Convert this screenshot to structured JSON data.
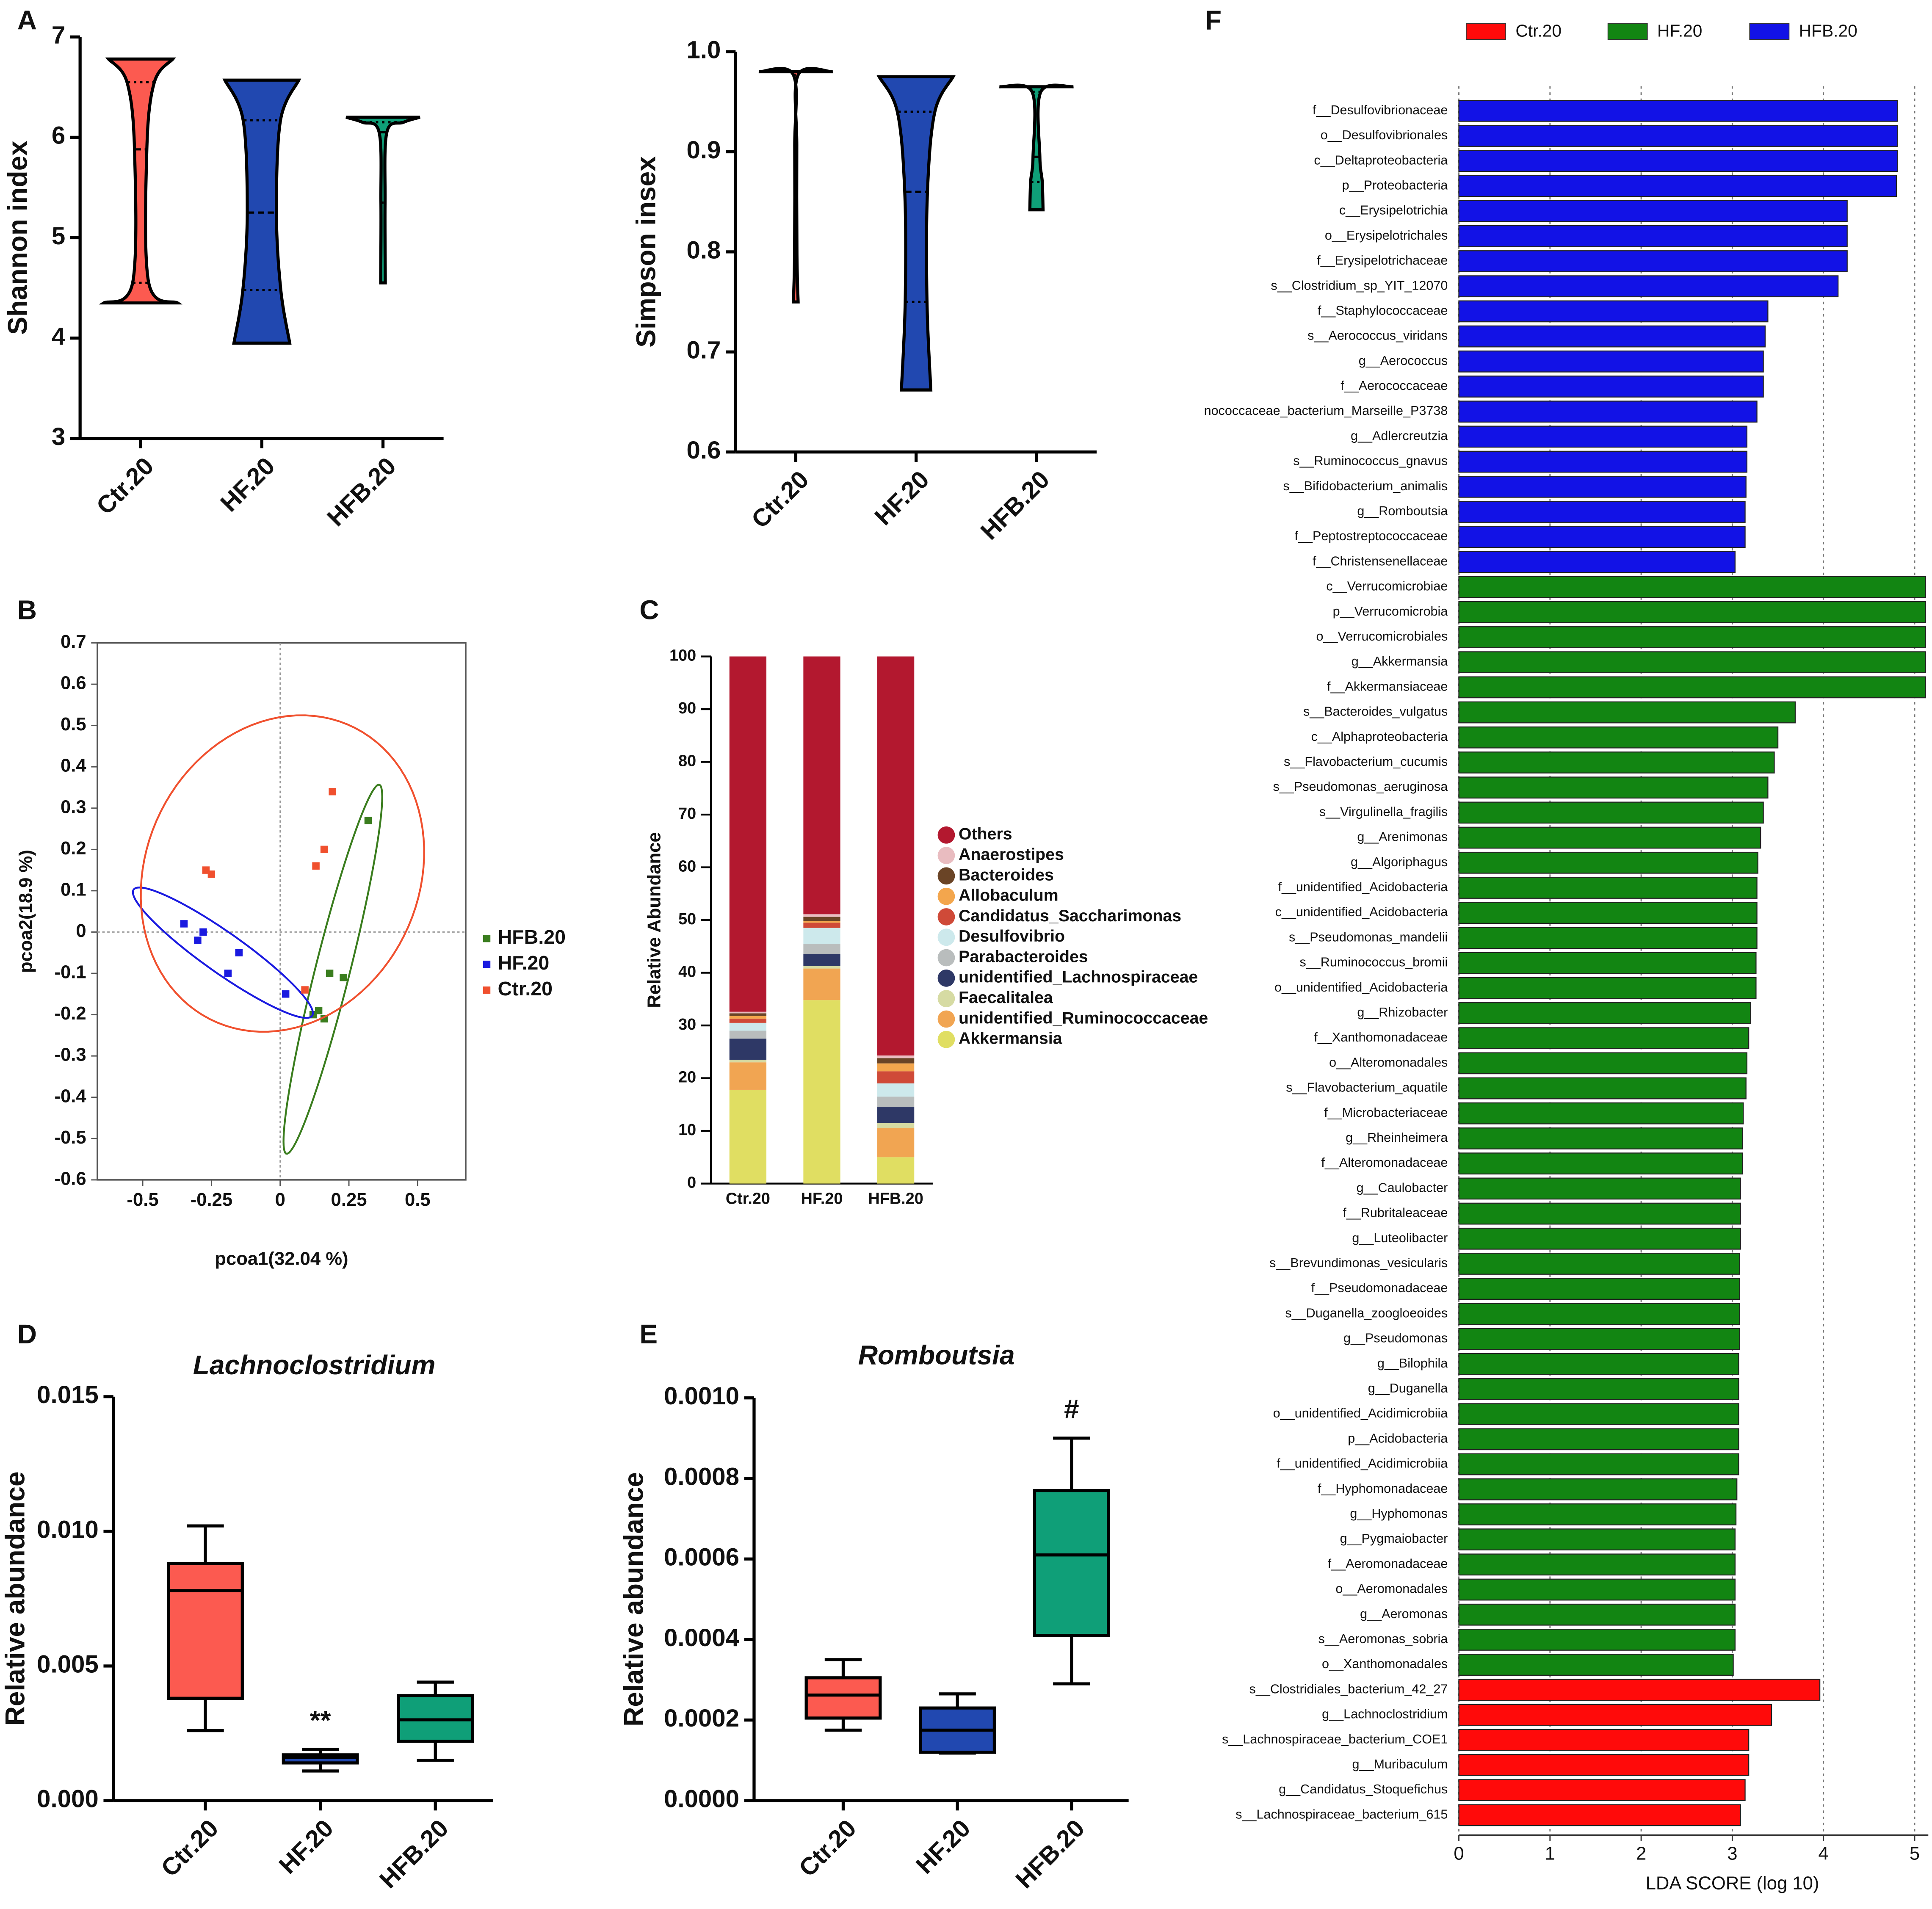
{
  "chart_data": [
    {
      "type": "violin",
      "panel": "A",
      "ylabel": "Shannon index",
      "categories": [
        "Ctr.20",
        "HF.20",
        "HFB.20"
      ],
      "colors": [
        "#fc5a50",
        "#2148b0",
        "#0f9f78"
      ],
      "stats": [
        {
          "min": 4.35,
          "q1": 4.55,
          "median": 5.88,
          "q3": 6.55,
          "max": 6.78
        },
        {
          "min": 3.95,
          "q1": 4.48,
          "median": 5.25,
          "q3": 6.17,
          "max": 6.57
        },
        {
          "min": 4.55,
          "q1": 5.35,
          "median": 6.05,
          "q3": 6.15,
          "max": 6.2
        }
      ],
      "ylim": [
        3,
        7
      ],
      "yticks": [
        3,
        4,
        5,
        6,
        7
      ]
    },
    {
      "type": "violin",
      "ylabel": "Simpson insex",
      "categories": [
        "Ctr.20",
        "HF.20",
        "HFB.20"
      ],
      "colors": [
        "#fc5a50",
        "#2148b0",
        "#0f9f78"
      ],
      "stats": [
        {
          "min": 0.75,
          "q1": 0.797,
          "median": 0.905,
          "q3": 0.977,
          "max": 0.98
        },
        {
          "min": 0.662,
          "q1": 0.75,
          "median": 0.86,
          "q3": 0.94,
          "max": 0.975
        },
        {
          "min": 0.842,
          "q1": 0.87,
          "median": 0.895,
          "q3": 0.96,
          "max": 0.965
        }
      ],
      "ylim": [
        0.6,
        1.0
      ],
      "yticks": [
        0.6,
        0.7,
        0.8,
        0.9,
        {
          "value": 1.0,
          "label": "1.0"
        }
      ]
    },
    {
      "type": "scatter",
      "panel": "B",
      "xlabel": "pcoa1(32.04 %)",
      "ylabel": "pcoa2(18.9 %)",
      "series": [
        {
          "name": "HFB.20",
          "color": "#3a7d1e",
          "x": [
            0.32,
            0.18,
            0.23,
            0.14,
            0.16,
            0.12
          ],
          "y": [
            0.27,
            -0.1,
            -0.11,
            -0.19,
            -0.21,
            -0.2
          ]
        },
        {
          "name": "HF.20",
          "color": "#1a1ae0",
          "x": [
            -0.35,
            -0.3,
            -0.28,
            -0.15,
            -0.19,
            0.02
          ],
          "y": [
            0.02,
            -0.02,
            0.0,
            -0.05,
            -0.1,
            -0.15
          ]
        },
        {
          "name": "Ctr.20",
          "color": "#f0502e",
          "x": [
            -0.27,
            -0.25,
            0.19,
            0.16,
            0.13,
            0.09
          ],
          "y": [
            0.15,
            0.14,
            0.34,
            0.2,
            0.16,
            -0.14
          ]
        }
      ],
      "xlim": [
        -0.665,
        0.675
      ],
      "ylim": [
        -0.6,
        0.7
      ],
      "xticks": [
        -0.5,
        -0.25,
        0,
        0.25,
        0.5
      ],
      "yticks": [
        -0.6,
        -0.5,
        -0.4,
        -0.3,
        -0.2,
        -0.1,
        0,
        0.1,
        0.2,
        0.3,
        0.4,
        0.5,
        0.6,
        0.7
      ]
    },
    {
      "type": "stacked_bar",
      "panel": "C",
      "ylabel": "Relative Abundance",
      "categories": [
        "Ctr.20",
        "HF.20",
        "HFB.20"
      ],
      "series": [
        {
          "name": "Akkermansia",
          "color": "#e0de62",
          "values": [
            17.8,
            34.8,
            5
          ]
        },
        {
          "name": "unidentified_Ruminococcaceae",
          "color": "#f1a552",
          "values": [
            5.2,
            6,
            5.5
          ]
        },
        {
          "name": "Faecalitalea",
          "color": "#d6dba3",
          "values": [
            0.5,
            0.5,
            1
          ]
        },
        {
          "name": "unidentified_Lachnospiraceae",
          "color": "#2e3866",
          "values": [
            4,
            2.2,
            3
          ]
        },
        {
          "name": "Parabacteroides",
          "color": "#b9bdbd",
          "values": [
            1.5,
            2,
            2
          ]
        },
        {
          "name": "Desulfovibrio",
          "color": "#cde9ec",
          "values": [
            1.5,
            3,
            2.5
          ]
        },
        {
          "name": "Candidatus_Saccharimonas",
          "color": "#cf4a38",
          "values": [
            0.8,
            1,
            2.3
          ]
        },
        {
          "name": "Allobaculum",
          "color": "#f3a64d",
          "values": [
            0.5,
            0.3,
            1.5
          ]
        },
        {
          "name": "Bacteroides",
          "color": "#6a4426",
          "values": [
            0.5,
            0.8,
            1
          ]
        },
        {
          "name": "Anaerostipes",
          "color": "#e9bcc0",
          "values": [
            0.3,
            0.5,
            0.5
          ]
        },
        {
          "name": "Others",
          "color": "#b3182f",
          "values": [
            67.4,
            48.9,
            75.7
          ]
        }
      ],
      "ylim": [
        0,
        100
      ],
      "yticks": [
        0,
        10,
        20,
        30,
        40,
        50,
        60,
        70,
        80,
        90,
        100
      ]
    },
    {
      "type": "box",
      "panel": "D",
      "title": "Lachnoclostridium",
      "ylabel": "Relative abundance",
      "categories": [
        "Ctr.20",
        "HF.20",
        "HFB.20"
      ],
      "colors": [
        "#fc5a50",
        "#2148b0",
        "#0f9f78"
      ],
      "stats": [
        {
          "min": 0.0026,
          "q1": 0.0038,
          "median": 0.0078,
          "q3": 0.0088,
          "max": 0.0102
        },
        {
          "min": 0.0011,
          "q1": 0.0014,
          "median": 0.0016,
          "q3": 0.0017,
          "max": 0.0019
        },
        {
          "min": 0.0015,
          "q1": 0.0022,
          "median": 0.003,
          "q3": 0.0039,
          "max": 0.0044
        }
      ],
      "annotations": [
        {
          "category": "HF.20",
          "text": "**"
        }
      ],
      "ylim": [
        0,
        0.015
      ],
      "yticks": [
        {
          "value": 0,
          "label": "0.000"
        },
        {
          "value": 0.005,
          "label": "0.005"
        },
        {
          "value": 0.01,
          "label": "0.010"
        },
        {
          "value": 0.015,
          "label": "0.015"
        }
      ]
    },
    {
      "type": "box",
      "panel": "E",
      "title": "Romboutsia",
      "ylabel": "Relative abundance",
      "categories": [
        "Ctr.20",
        "HF.20",
        "HFB.20"
      ],
      "colors": [
        "#fc5a50",
        "#2148b0",
        "#0f9f78"
      ],
      "stats": [
        {
          "min": 0.000175,
          "q1": 0.000205,
          "median": 0.000262,
          "q3": 0.000305,
          "max": 0.00035
        },
        {
          "min": 0.000118,
          "q1": 0.00012,
          "median": 0.000175,
          "q3": 0.00023,
          "max": 0.000265
        },
        {
          "min": 0.00029,
          "q1": 0.00041,
          "median": 0.00061,
          "q3": 0.00077,
          "max": 0.0009
        }
      ],
      "annotations": [
        {
          "category": "HFB.20",
          "text": "#"
        }
      ],
      "ylim": [
        0,
        0.001
      ],
      "yticks": [
        {
          "value": 0,
          "label": "0.0000"
        },
        {
          "value": 0.0002,
          "label": "0.0002"
        },
        {
          "value": 0.0004,
          "label": "0.0004"
        },
        {
          "value": 0.0006,
          "label": "0.0006"
        },
        {
          "value": 0.0008,
          "label": "0.0008"
        },
        {
          "value": 0.001,
          "label": "0.0010"
        }
      ]
    },
    {
      "type": "lda",
      "panel": "F",
      "xlabel": "LDA SCORE (log 10)",
      "grid": true,
      "series": [
        {
          "name": "Ctr.20",
          "color": "#ff0a0a",
          "categories": [
            "s__Clostridiales_bacterium_42_27",
            "g__Lachnoclostridium",
            "s__Lachnospiraceae_bacterium_COE1",
            "g__Muribaculum",
            "g__Candidatus_Stoquefichus",
            "s__Lachnospiraceae_bacterium_615"
          ],
          "values": [
            3.96,
            3.43,
            3.18,
            3.18,
            3.14,
            3.09
          ]
        },
        {
          "name": "HF.20",
          "color": "#128512",
          "categories": [
            "c__Verrucomicrobiae",
            "p__Verrucomicrobia",
            "o__Verrucomicrobiales",
            "g__Akkermansia",
            "f__Akkermansiaceae",
            "s__Bacteroides_vulgatus",
            "c__Alphaproteobacteria",
            "s__Flavobacterium_cucumis",
            "s__Pseudomonas_aeruginosa",
            "s__Virgulinella_fragilis",
            "g__Arenimonas",
            "g__Algoriphagus",
            "f__unidentified_Acidobacteria",
            "c__unidentified_Acidobacteria",
            "s__Pseudomonas_mandelii",
            "s__Ruminococcus_bromii",
            "o__unidentified_Acidobacteria",
            "g__Rhizobacter",
            "f__Xanthomonadaceae",
            "o__Alteromonadales",
            "s__Flavobacterium_aquatile",
            "f__Microbacteriaceae",
            "g__Rheinheimera",
            "f__Alteromonadaceae",
            "g__Caulobacter",
            "f__Rubritaleaceae",
            "g__Luteolibacter",
            "s__Brevundimonas_vesicularis",
            "f__Pseudomonadaceae",
            "s__Duganella_zoogloeoides",
            "g__Pseudomonas",
            "g__Bilophila",
            "g__Duganella",
            "o__unidentified_Acidimicrobiia",
            "p__Acidobacteria",
            "f__unidentified_Acidimicrobiia",
            "f__Hyphomonadaceae",
            "g__Hyphomonas",
            "g__Pygmaiobacter",
            "f__Aeromonadaceae",
            "o__Aeromonadales",
            "g__Aeromonas",
            "s__Aeromonas_sobria",
            "o__Xanthomonadales"
          ],
          "values": [
            5.12,
            5.12,
            5.12,
            5.12,
            5.12,
            3.69,
            3.5,
            3.46,
            3.39,
            3.34,
            3.31,
            3.28,
            3.27,
            3.27,
            3.27,
            3.26,
            3.26,
            3.2,
            3.18,
            3.16,
            3.15,
            3.12,
            3.11,
            3.11,
            3.09,
            3.09,
            3.09,
            3.08,
            3.08,
            3.08,
            3.08,
            3.07,
            3.07,
            3.07,
            3.07,
            3.07,
            3.05,
            3.04,
            3.03,
            3.03,
            3.03,
            3.03,
            3.03,
            3.01
          ]
        },
        {
          "name": "HFB.20",
          "color": "#1212e6",
          "categories": [
            "f__Desulfovibrionaceae",
            "o__Desulfovibrionales",
            "c__Deltaproteobacteria",
            "p__Proteobacteria",
            "c__Erysipelotrichia",
            "o__Erysipelotrichales",
            "f__Erysipelotrichaceae",
            "s__Clostridium_sp_YIT_12070",
            "f__Staphylococcaceae",
            "s__Aerococcus_viridans",
            "g__Aerococcus",
            "f__Aerococcaceae",
            "nococcaceae_bacterium_Marseille_P3738",
            "g__Adlercreutzia",
            "s__Ruminococcus_gnavus",
            "s__Bifidobacterium_animalis",
            "g__Romboutsia",
            "f__Peptostreptococcaceae",
            "f__Christensenellaceae"
          ],
          "values": [
            4.81,
            4.81,
            4.81,
            4.8,
            4.26,
            4.26,
            4.26,
            4.16,
            3.39,
            3.36,
            3.34,
            3.34,
            3.27,
            3.16,
            3.16,
            3.15,
            3.14,
            3.14,
            3.03
          ]
        }
      ],
      "xlim": [
        0,
        5.15
      ],
      "xticks": [
        0,
        1,
        2,
        3,
        4,
        5
      ]
    }
  ]
}
